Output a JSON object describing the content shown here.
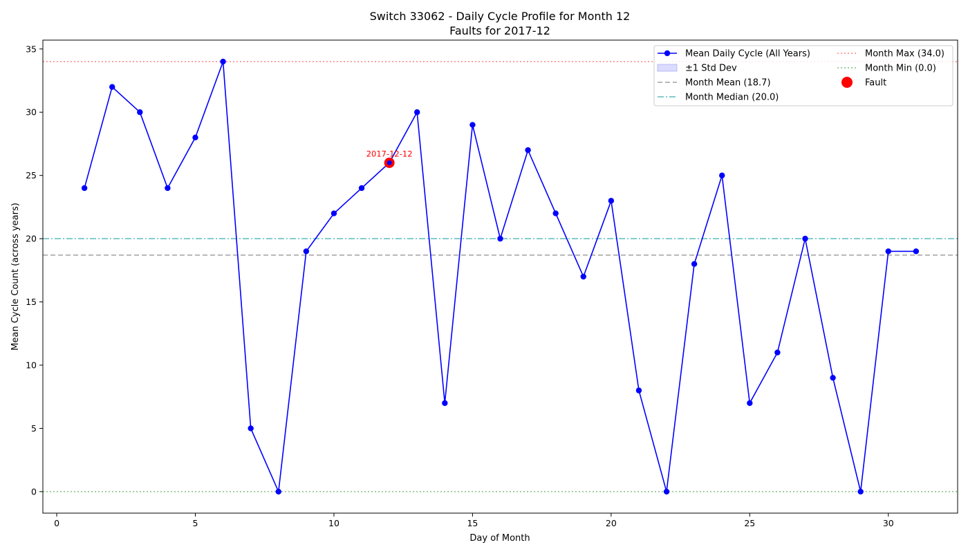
{
  "chart_data": {
    "type": "line",
    "title": "Switch 33062 - Daily Cycle Profile for Month 12",
    "subtitle": "Faults for 2017-12",
    "xlabel": "Day of Month",
    "ylabel": "Mean Cycle Count (across years)",
    "xlim": [
      -0.5,
      32.5
    ],
    "ylim": [
      -1.7,
      35.7
    ],
    "xticks": [
      0,
      5,
      10,
      15,
      20,
      25,
      30
    ],
    "yticks": [
      0,
      5,
      10,
      15,
      20,
      25,
      30,
      35
    ],
    "grid": false,
    "legend_position": "top-right",
    "series": [
      {
        "name": "Mean Daily Cycle (All Years)",
        "color": "#0000ff",
        "x": [
          1,
          2,
          3,
          4,
          5,
          6,
          7,
          8,
          9,
          10,
          11,
          12,
          13,
          14,
          15,
          16,
          17,
          18,
          19,
          20,
          21,
          22,
          23,
          24,
          25,
          26,
          27,
          28,
          29,
          30,
          31
        ],
        "y": [
          24,
          32,
          30,
          24,
          28,
          34,
          5,
          0,
          19,
          22,
          24,
          26,
          30,
          7,
          29,
          20,
          27,
          22,
          17,
          23,
          8,
          0,
          18,
          25,
          7,
          11,
          20,
          9,
          0,
          19,
          19
        ]
      }
    ],
    "std_band": {
      "name": "±1 Std Dev",
      "color": "#ccccff"
    },
    "reference_lines": [
      {
        "name": "Month Mean (18.7)",
        "value": 18.7,
        "color": "#a0a0a0",
        "style": "dashed"
      },
      {
        "name": "Month Median (20.0)",
        "value": 20.0,
        "color": "#5bbcbc",
        "style": "dashdot"
      },
      {
        "name": "Month Max (34.0)",
        "value": 34.0,
        "color": "#ff8080",
        "style": "dotted"
      },
      {
        "name": "Month Min (0.0)",
        "value": 0.0,
        "color": "#7fbf7f",
        "style": "dotted"
      }
    ],
    "faults": [
      {
        "name": "Fault",
        "x": 12,
        "y": 26,
        "label": "2017-12-12",
        "color": "#ff0000"
      }
    ]
  }
}
